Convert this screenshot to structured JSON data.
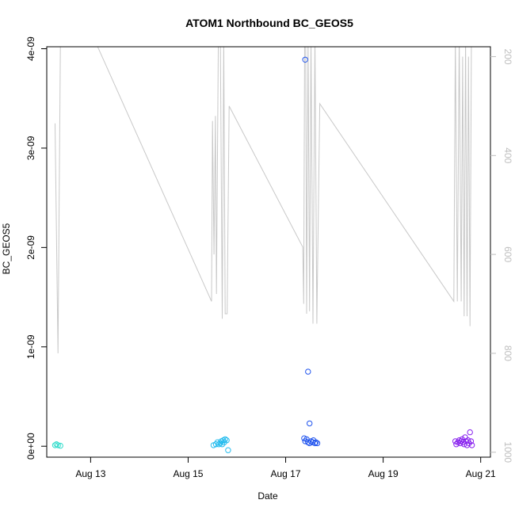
{
  "chart_data": {
    "type": "scatter",
    "title": "ATOM1 Northbound BC_GEOS5",
    "xlabel": "Date",
    "ylabel": "BC_GEOS5",
    "x_ticks": [
      "Aug 13",
      "Aug 15",
      "Aug 17",
      "Aug 19",
      "Aug 21"
    ],
    "x_tick_values": [
      13,
      15,
      17,
      19,
      21
    ],
    "xlim": [
      12.1,
      21.2
    ],
    "y_ticks": [
      "0e+00",
      "1e-09",
      "2e-09",
      "3e-09",
      "4e-09"
    ],
    "y_tick_values": [
      0,
      1e-09,
      2e-09,
      3e-09,
      4e-09
    ],
    "ylim": [
      -1.1e-10,
      4.02e-09
    ],
    "y2_ticks": [
      "200",
      "400",
      "600",
      "800",
      "1000"
    ],
    "y2_tick_values": [
      200,
      400,
      600,
      800,
      1000
    ],
    "y2lim": [
      1010,
      180
    ],
    "y2_reversed": true,
    "grid": false,
    "colors": {
      "axis": "#000000",
      "secondary": "#bebebe",
      "line": "#c8c8c8"
    },
    "series": [
      {
        "kind": "points",
        "points": [
          {
            "x": 12.27,
            "y": 1e-11,
            "color": "#33ddcc"
          },
          {
            "x": 12.3,
            "y": 2e-11,
            "color": "#33ddcc"
          },
          {
            "x": 12.33,
            "y": 1e-11,
            "color": "#33ddcc"
          },
          {
            "x": 12.38,
            "y": 5e-12,
            "color": "#33ddcc"
          },
          {
            "x": 15.52,
            "y": 1e-11,
            "color": "#22bbee"
          },
          {
            "x": 15.57,
            "y": 2e-11,
            "color": "#22bbee"
          },
          {
            "x": 15.6,
            "y": 4e-11,
            "color": "#22bbee"
          },
          {
            "x": 15.63,
            "y": 2e-11,
            "color": "#22bbee"
          },
          {
            "x": 15.66,
            "y": 3e-11,
            "color": "#22bbee"
          },
          {
            "x": 15.68,
            "y": 5e-11,
            "color": "#22bbee"
          },
          {
            "x": 15.7,
            "y": 2e-11,
            "color": "#22bbee"
          },
          {
            "x": 15.72,
            "y": 6e-11,
            "color": "#22bbee"
          },
          {
            "x": 15.74,
            "y": 4e-11,
            "color": "#22bbee"
          },
          {
            "x": 15.76,
            "y": 7e-11,
            "color": "#22bbee"
          },
          {
            "x": 15.79,
            "y": 6e-11,
            "color": "#22bbee"
          },
          {
            "x": 15.82,
            "y": -4e-11,
            "color": "#22bbee"
          },
          {
            "x": 17.4,
            "y": 3.89e-09,
            "color": "#2255ee"
          },
          {
            "x": 17.46,
            "y": 7.5e-10,
            "color": "#2255ee"
          },
          {
            "x": 17.49,
            "y": 2.3e-10,
            "color": "#2255ee"
          },
          {
            "x": 17.38,
            "y": 8e-11,
            "color": "#2255ee"
          },
          {
            "x": 17.4,
            "y": 5e-11,
            "color": "#2255ee"
          },
          {
            "x": 17.43,
            "y": 7e-11,
            "color": "#2255ee"
          },
          {
            "x": 17.46,
            "y": 4e-11,
            "color": "#2255ee"
          },
          {
            "x": 17.49,
            "y": 3e-11,
            "color": "#2255ee"
          },
          {
            "x": 17.52,
            "y": 5e-11,
            "color": "#2255ee"
          },
          {
            "x": 17.55,
            "y": 4e-11,
            "color": "#2255ee"
          },
          {
            "x": 17.57,
            "y": 6e-11,
            "color": "#2255ee"
          },
          {
            "x": 17.6,
            "y": 3e-11,
            "color": "#2255ee"
          },
          {
            "x": 17.62,
            "y": 4e-11,
            "color": "#2255ee"
          },
          {
            "x": 17.65,
            "y": 3e-11,
            "color": "#2255ee"
          },
          {
            "x": 20.48,
            "y": 5e-11,
            "color": "#8822ee"
          },
          {
            "x": 20.5,
            "y": 2e-11,
            "color": "#8822ee"
          },
          {
            "x": 20.53,
            "y": 4e-11,
            "color": "#8822ee"
          },
          {
            "x": 20.56,
            "y": 6e-11,
            "color": "#8822ee"
          },
          {
            "x": 20.58,
            "y": 3e-11,
            "color": "#8822ee"
          },
          {
            "x": 20.6,
            "y": 5e-11,
            "color": "#8822ee"
          },
          {
            "x": 20.62,
            "y": 7e-11,
            "color": "#8822ee"
          },
          {
            "x": 20.64,
            "y": 4e-11,
            "color": "#8822ee"
          },
          {
            "x": 20.66,
            "y": 2e-11,
            "color": "#8822ee"
          },
          {
            "x": 20.68,
            "y": 9e-11,
            "color": "#8822ee"
          },
          {
            "x": 20.7,
            "y": 5e-11,
            "color": "#8822ee"
          },
          {
            "x": 20.72,
            "y": 1e-11,
            "color": "#8822ee"
          },
          {
            "x": 20.74,
            "y": 6e-11,
            "color": "#8822ee"
          },
          {
            "x": 20.76,
            "y": 3e-11,
            "color": "#8822ee"
          },
          {
            "x": 20.78,
            "y": 1.4e-10,
            "color": "#8822ee"
          },
          {
            "x": 20.8,
            "y": 5e-11,
            "color": "#8822ee"
          },
          {
            "x": 20.82,
            "y": 1e-11,
            "color": "#8822ee"
          }
        ]
      },
      {
        "kind": "line",
        "axis": "right",
        "color": "#c8c8c8",
        "x": [
          12.27,
          12.33,
          12.38,
          12.44,
          13.1,
          15.48,
          15.5,
          15.53,
          15.56,
          15.58,
          15.62,
          15.66,
          15.7,
          15.73,
          15.76,
          15.8,
          15.84,
          17.35,
          17.37,
          17.39,
          17.41,
          17.43,
          17.46,
          17.49,
          17.52,
          17.56,
          17.6,
          17.64,
          17.7,
          20.45,
          20.48,
          20.52,
          20.56,
          20.6,
          20.63,
          20.66,
          20.69,
          20.72,
          20.75,
          20.78,
          20.81
        ],
        "y": [
          335,
          800,
          180,
          160,
          170,
          695,
          330,
          600,
          320,
          680,
          160,
          160,
          730,
          165,
          720,
          720,
          300,
          585,
          700,
          160,
          160,
          720,
          160,
          715,
          160,
          740,
          160,
          740,
          295,
          695,
          160,
          695,
          160,
          695,
          200,
          725,
          160,
          725,
          200,
          745,
          160
        ]
      }
    ]
  }
}
